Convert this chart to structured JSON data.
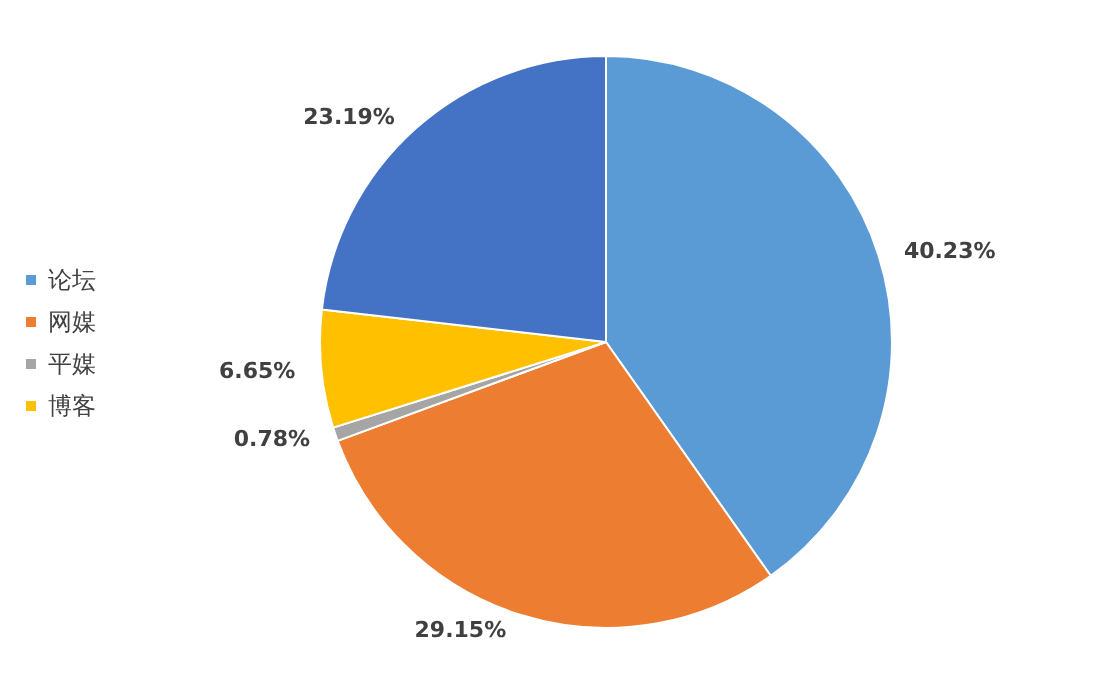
{
  "chart_data": {
    "type": "pie",
    "categories": [
      "论坛",
      "网媒",
      "平媒",
      "博客",
      null
    ],
    "values": [
      40.23,
      29.15,
      0.78,
      6.65,
      23.19
    ],
    "value_labels": [
      "40.23%",
      "29.15%",
      "0.78%",
      "6.65%",
      "23.19%"
    ],
    "colors": [
      "#5b9bd5",
      "#ed7d31",
      "#a5a5a5",
      "#ffc000",
      "#4472c4"
    ],
    "legend": "left"
  }
}
